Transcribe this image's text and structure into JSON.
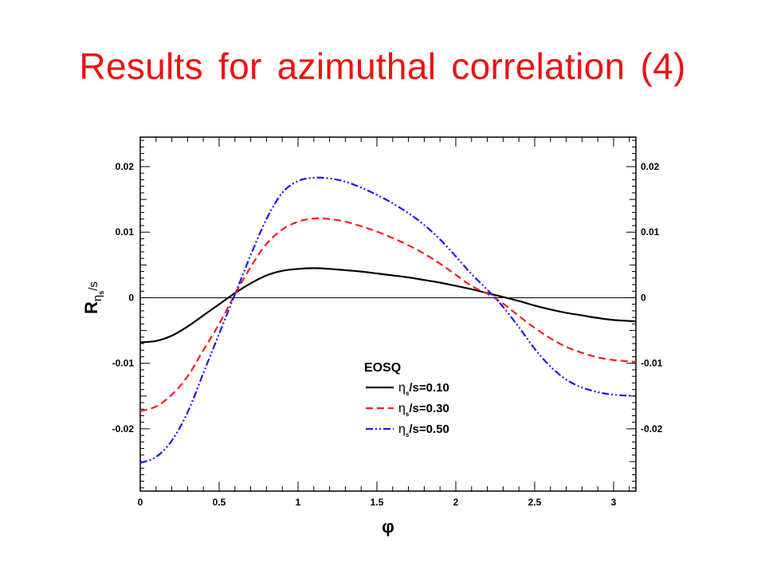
{
  "slide": {
    "title": "Results for azimuthal correlation (4)"
  },
  "chart_data": {
    "type": "line",
    "title": "",
    "xlabel": "φ",
    "ylabel_main": "R",
    "ylabel_sub": "η",
    "ylabel_subsub": "s",
    "ylabel_tail": "/s",
    "xlim": [
      0,
      3.1416
    ],
    "ylim": [
      -0.0295,
      0.0245
    ],
    "x_ticks": [
      0,
      0.5,
      1,
      1.5,
      2,
      2.5,
      3
    ],
    "x_tick_labels": [
      "0",
      "0.5",
      "1",
      "1.5",
      "2",
      "2.5",
      "3"
    ],
    "y_ticks": [
      -0.02,
      -0.01,
      0,
      0.01,
      0.02
    ],
    "y_tick_labels": [
      "-0.02",
      "-0.01",
      "0",
      "0.01",
      "0.02"
    ],
    "grid": false,
    "zero_line": true,
    "legend": {
      "title": "EOSQ",
      "placement": "lower-right"
    },
    "x": [
      0,
      0.1,
      0.2,
      0.3,
      0.4,
      0.5,
      0.6,
      0.7,
      0.8,
      0.9,
      1.0,
      1.1,
      1.2,
      1.3,
      1.4,
      1.5,
      1.6,
      1.7,
      1.8,
      1.9,
      2.0,
      2.1,
      2.2,
      2.3,
      2.4,
      2.5,
      2.6,
      2.7,
      2.8,
      2.9,
      3.0,
      3.1416
    ],
    "series": [
      {
        "name": "0.10",
        "label_eta": "η",
        "label_sub": "s",
        "label_rest": "/s=0.10",
        "color": "#000000",
        "dash": "solid",
        "values": [
          -0.0068,
          -0.0066,
          -0.0058,
          -0.0044,
          -0.0027,
          -0.001,
          0.0007,
          0.0022,
          0.0034,
          0.0041,
          0.0044,
          0.0045,
          0.0044,
          0.0042,
          0.004,
          0.0037,
          0.0034,
          0.0031,
          0.0027,
          0.0023,
          0.0018,
          0.0013,
          0.0007,
          0.0001,
          -0.0005,
          -0.0012,
          -0.0018,
          -0.0023,
          -0.0027,
          -0.0031,
          -0.0034,
          -0.0036
        ]
      },
      {
        "name": "0.30",
        "label_eta": "η",
        "label_sub": "s",
        "label_rest": "/s=0.30",
        "color": "#ee2222",
        "dash": "dashed",
        "values": [
          -0.0173,
          -0.0166,
          -0.0148,
          -0.012,
          -0.008,
          -0.004,
          0.0005,
          0.0047,
          0.0082,
          0.0104,
          0.0116,
          0.0121,
          0.012,
          0.0116,
          0.0109,
          0.0101,
          0.0091,
          0.008,
          0.0067,
          0.0052,
          0.0035,
          0.0018,
          0.0006,
          -0.0009,
          -0.0028,
          -0.0046,
          -0.0062,
          -0.0075,
          -0.0084,
          -0.0091,
          -0.0095,
          -0.0098
        ]
      },
      {
        "name": "0.50",
        "label_eta": "η",
        "label_sub": "s",
        "label_rest": "/s=0.50",
        "color": "#1a1aee",
        "dash": "dash-dot-dot",
        "values": [
          -0.0252,
          -0.0243,
          -0.0218,
          -0.0175,
          -0.0115,
          -0.0055,
          0.0005,
          0.0065,
          0.012,
          0.016,
          0.0178,
          0.0183,
          0.0182,
          0.0177,
          0.0168,
          0.0157,
          0.0144,
          0.0129,
          0.0111,
          0.0089,
          0.0063,
          0.0036,
          0.0012,
          -0.0014,
          -0.0045,
          -0.0078,
          -0.0105,
          -0.0125,
          -0.0137,
          -0.0144,
          -0.0148,
          -0.015
        ]
      }
    ]
  }
}
